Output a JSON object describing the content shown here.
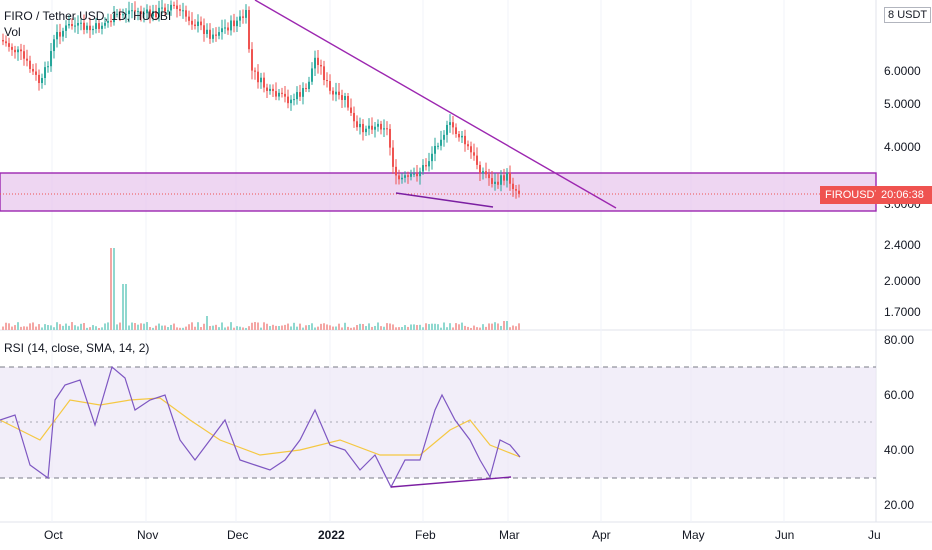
{
  "header": {
    "symbol_title": "FIRO / Tether USD, 1D, HUOBI",
    "volume_label": "Vol"
  },
  "price_axis": {
    "unit": "USDT",
    "unit_prefix": "8",
    "ticks": [
      "6.0000",
      "5.0000",
      "4.0000",
      "3.0000"
    ],
    "volume_ticks": [
      "2.4000",
      "2.0000",
      "1.7000"
    ]
  },
  "rsi": {
    "title": "RSI (14, close, SMA, 14, 2)",
    "ticks": [
      "80.00",
      "60.00",
      "40.00",
      "20.00"
    ],
    "upper_band": 70,
    "lower_band": 30,
    "middle": 50
  },
  "time_axis": {
    "labels": [
      "Oct",
      "Nov",
      "Dec",
      "2022",
      "Feb",
      "Mar",
      "Apr",
      "May",
      "Jun",
      "Ju"
    ]
  },
  "last_price_tag": {
    "symbol": "FIROUSDT",
    "countdown": "20:06:38"
  },
  "colors": {
    "up": "#26a69a",
    "down": "#ef5350",
    "drawing": "#9c27b0",
    "rsi_line": "#7e57c2",
    "rsi_ma": "#f5c842",
    "zone_fill": "#e1bee7"
  }
}
